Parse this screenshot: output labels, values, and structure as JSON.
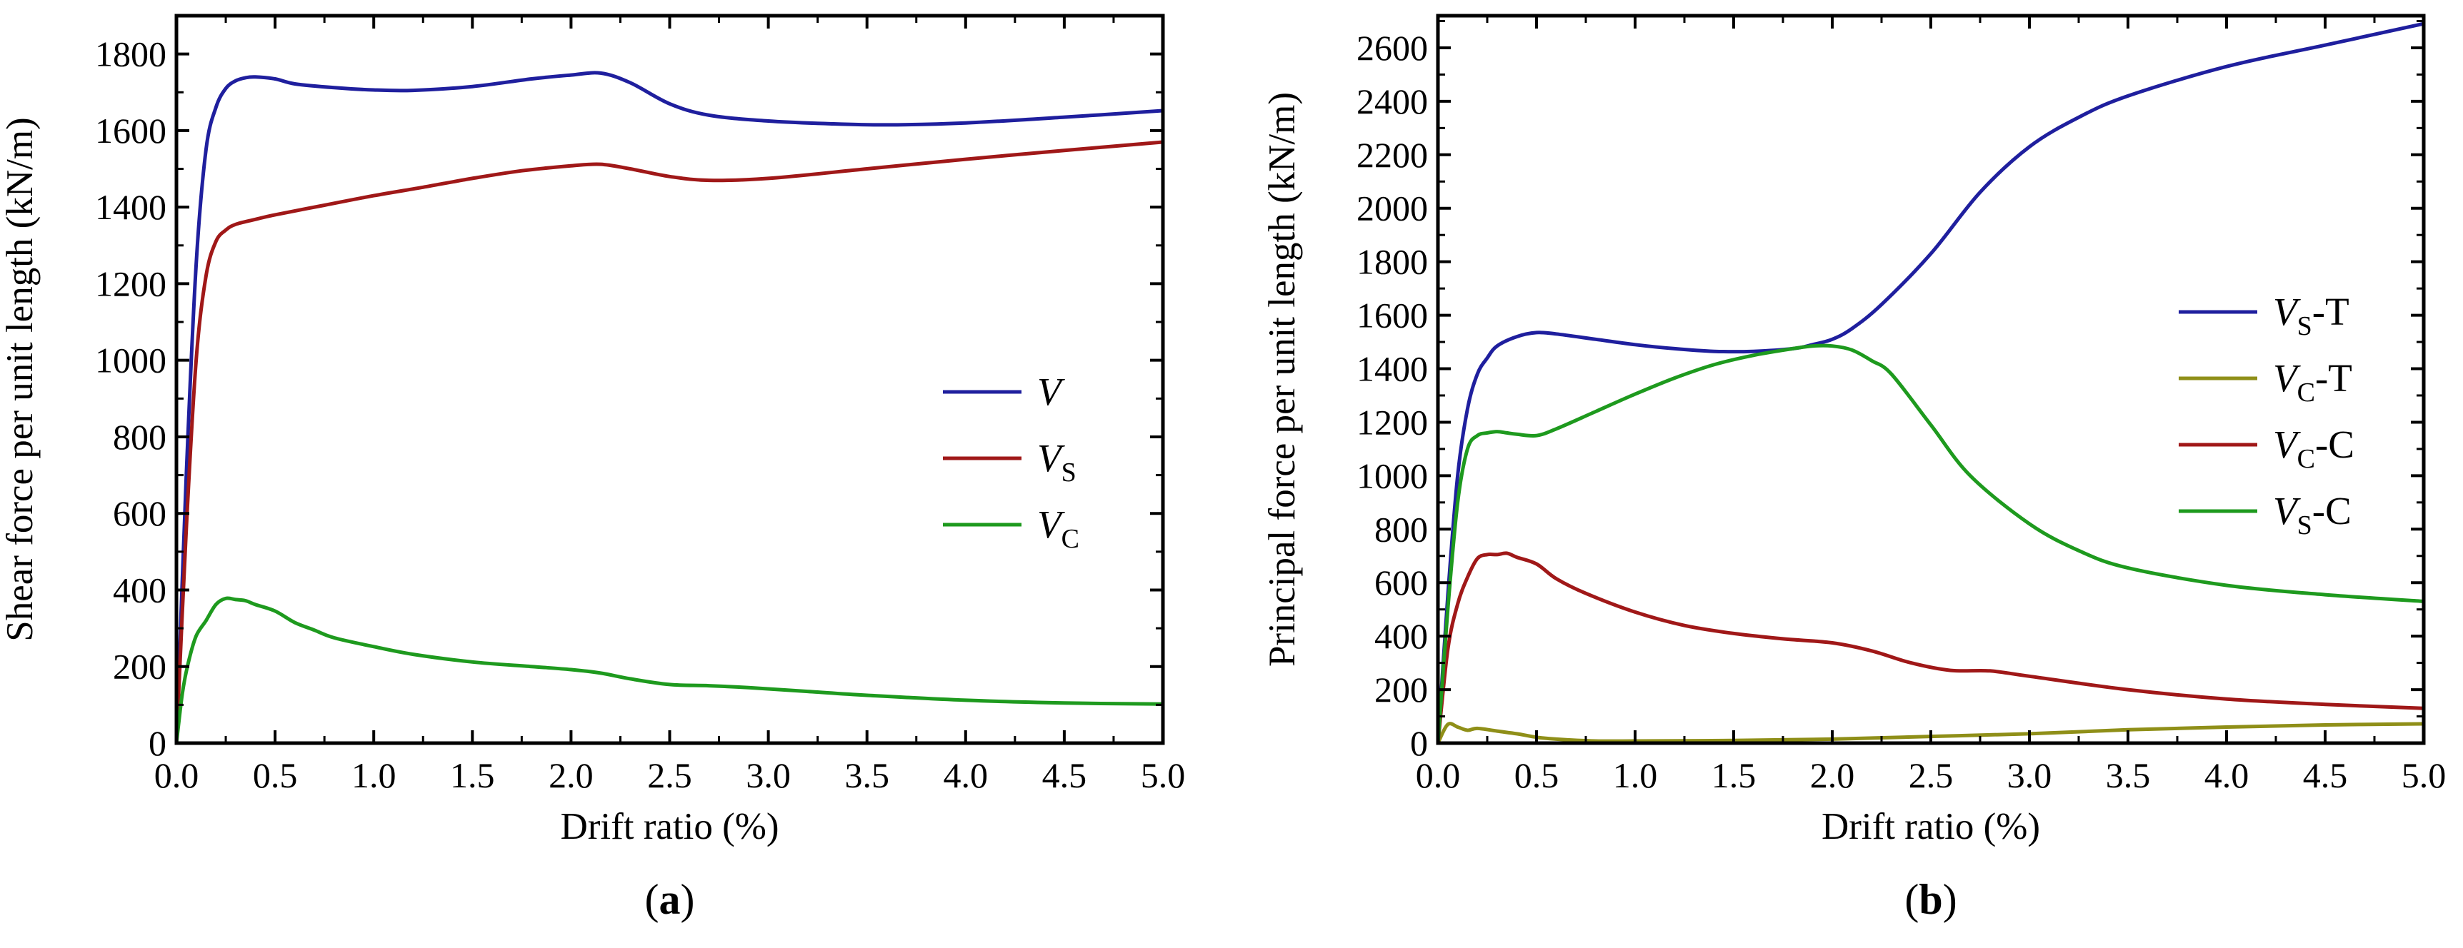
{
  "chart_data": [
    {
      "type": "line",
      "panel_label": "(a)",
      "xlabel": "Drift ratio (%)",
      "ylabel": "Shear force per unit length (kN/m)",
      "xlim": [
        0,
        5.0
      ],
      "ylim": [
        0,
        1900
      ],
      "xticks": [
        0,
        0.5,
        1.0,
        1.5,
        2.0,
        2.5,
        3.0,
        3.5,
        4.0,
        4.5,
        5.0
      ],
      "xtick_labels": [
        "0.0",
        "0.5",
        "1.0",
        "1.5",
        "2.0",
        "2.5",
        "3.0",
        "3.5",
        "4.0",
        "4.5",
        "5.0"
      ],
      "yticks": [
        0,
        200,
        400,
        600,
        800,
        1000,
        1200,
        1400,
        1600,
        1800
      ],
      "ytick_labels": [
        "0",
        "200",
        "400",
        "600",
        "800",
        "1000",
        "1200",
        "1400",
        "1600",
        "1800"
      ],
      "legend_position": "center-right",
      "series": [
        {
          "name": "V",
          "main": "V",
          "sub": "",
          "suffix": "",
          "color": "#1f1f9e",
          "x": [
            0,
            0.05,
            0.1,
            0.15,
            0.2,
            0.25,
            0.3,
            0.35,
            0.4,
            0.5,
            0.6,
            0.8,
            1.0,
            1.2,
            1.5,
            1.8,
            2.0,
            2.15,
            2.3,
            2.5,
            2.7,
            3.0,
            3.3,
            3.6,
            4.0,
            4.5,
            5.0
          ],
          "y": [
            0,
            700,
            1250,
            1550,
            1660,
            1710,
            1730,
            1738,
            1740,
            1735,
            1722,
            1712,
            1706,
            1705,
            1715,
            1735,
            1745,
            1750,
            1725,
            1670,
            1640,
            1625,
            1618,
            1615,
            1620,
            1635,
            1652
          ]
        },
        {
          "name": "VS",
          "main": "V",
          "sub": "S",
          "suffix": "",
          "color": "#a01818",
          "x": [
            0,
            0.05,
            0.1,
            0.15,
            0.2,
            0.25,
            0.3,
            0.4,
            0.5,
            0.75,
            1.0,
            1.25,
            1.5,
            1.75,
            2.0,
            2.15,
            2.3,
            2.5,
            2.7,
            3.0,
            3.5,
            4.0,
            4.5,
            5.0
          ],
          "y": [
            0,
            560,
            1000,
            1220,
            1310,
            1340,
            1355,
            1368,
            1380,
            1405,
            1430,
            1452,
            1475,
            1495,
            1508,
            1512,
            1500,
            1480,
            1470,
            1475,
            1500,
            1525,
            1548,
            1570
          ]
        },
        {
          "name": "VC",
          "main": "V",
          "sub": "C",
          "suffix": "",
          "color": "#1e9a1e",
          "x": [
            0,
            0.03,
            0.06,
            0.1,
            0.15,
            0.2,
            0.25,
            0.3,
            0.35,
            0.4,
            0.5,
            0.6,
            0.7,
            0.8,
            1.0,
            1.2,
            1.5,
            1.8,
            2.0,
            2.15,
            2.3,
            2.5,
            2.7,
            2.9,
            3.2,
            3.5,
            4.0,
            4.5,
            5.0
          ],
          "y": [
            0,
            130,
            210,
            280,
            320,
            362,
            378,
            375,
            372,
            362,
            345,
            315,
            295,
            275,
            252,
            232,
            212,
            200,
            192,
            183,
            168,
            153,
            150,
            145,
            135,
            125,
            112,
            105,
            102
          ]
        }
      ]
    },
    {
      "type": "line",
      "panel_label": "(b)",
      "xlabel": "Drift ratio (%)",
      "ylabel": "Principal force per unit length (kN/m)",
      "xlim": [
        0,
        5.0
      ],
      "ylim": [
        0,
        2720
      ],
      "xticks": [
        0,
        0.5,
        1.0,
        1.5,
        2.0,
        2.5,
        3.0,
        3.5,
        4.0,
        4.5,
        5.0
      ],
      "xtick_labels": [
        "0.0",
        "0.5",
        "1.0",
        "1.5",
        "2.0",
        "2.5",
        "3.0",
        "3.5",
        "4.0",
        "4.5",
        "5.0"
      ],
      "yticks": [
        0,
        200,
        400,
        600,
        800,
        1000,
        1200,
        1400,
        1600,
        1800,
        2000,
        2200,
        2400,
        2600
      ],
      "ytick_labels": [
        "0",
        "200",
        "400",
        "600",
        "800",
        "1000",
        "1200",
        "1400",
        "1600",
        "1800",
        "2000",
        "2200",
        "2400",
        "2600"
      ],
      "legend_position": "center-right",
      "series": [
        {
          "name": "VS-T",
          "main": "V",
          "sub": "S",
          "suffix": "-T",
          "color": "#1f1f9e",
          "x": [
            0,
            0.05,
            0.1,
            0.15,
            0.2,
            0.25,
            0.3,
            0.4,
            0.5,
            0.6,
            0.8,
            1.0,
            1.2,
            1.4,
            1.6,
            1.8,
            1.9,
            2.0,
            2.1,
            2.25,
            2.5,
            2.75,
            3.0,
            3.25,
            3.5,
            4.0,
            4.5,
            5.0
          ],
          "y": [
            0,
            550,
            1000,
            1250,
            1380,
            1440,
            1485,
            1520,
            1535,
            1530,
            1510,
            1490,
            1475,
            1465,
            1465,
            1475,
            1490,
            1510,
            1550,
            1640,
            1830,
            2060,
            2230,
            2340,
            2420,
            2530,
            2610,
            2690
          ]
        },
        {
          "name": "VC-T",
          "main": "V",
          "sub": "C",
          "suffix": "-T",
          "color": "#8f8f18",
          "x": [
            0,
            0.05,
            0.1,
            0.15,
            0.2,
            0.3,
            0.4,
            0.5,
            0.6,
            0.8,
            1.0,
            1.5,
            2.0,
            2.5,
            3.0,
            3.5,
            4.0,
            4.5,
            5.0
          ],
          "y": [
            0,
            70,
            60,
            48,
            55,
            45,
            35,
            22,
            15,
            8,
            8,
            10,
            15,
            25,
            35,
            50,
            60,
            68,
            72
          ]
        },
        {
          "name": "VC-C",
          "main": "V",
          "sub": "C",
          "suffix": "-C",
          "color": "#a01818",
          "x": [
            0,
            0.05,
            0.1,
            0.15,
            0.2,
            0.25,
            0.3,
            0.35,
            0.4,
            0.5,
            0.6,
            0.75,
            1.0,
            1.25,
            1.5,
            1.75,
            2.0,
            2.2,
            2.4,
            2.6,
            2.8,
            3.0,
            3.5,
            4.0,
            4.5,
            5.0
          ],
          "y": [
            0,
            350,
            520,
            620,
            690,
            705,
            705,
            710,
            695,
            670,
            615,
            560,
            490,
            440,
            410,
            390,
            375,
            345,
            300,
            272,
            270,
            250,
            200,
            165,
            145,
            130
          ]
        },
        {
          "name": "VS-C",
          "main": "V",
          "sub": "S",
          "suffix": "-C",
          "color": "#1e9a1e",
          "x": [
            0,
            0.05,
            0.1,
            0.15,
            0.2,
            0.25,
            0.3,
            0.35,
            0.4,
            0.5,
            0.6,
            0.8,
            1.0,
            1.2,
            1.4,
            1.6,
            1.8,
            1.9,
            2.0,
            2.1,
            2.2,
            2.3,
            2.5,
            2.7,
            3.0,
            3.25,
            3.5,
            4.0,
            4.5,
            5.0
          ],
          "y": [
            0,
            500,
            900,
            1100,
            1150,
            1160,
            1165,
            1160,
            1155,
            1150,
            1175,
            1240,
            1305,
            1365,
            1415,
            1450,
            1475,
            1485,
            1485,
            1470,
            1430,
            1380,
            1190,
            1000,
            820,
            720,
            655,
            590,
            555,
            530
          ]
        }
      ]
    }
  ]
}
